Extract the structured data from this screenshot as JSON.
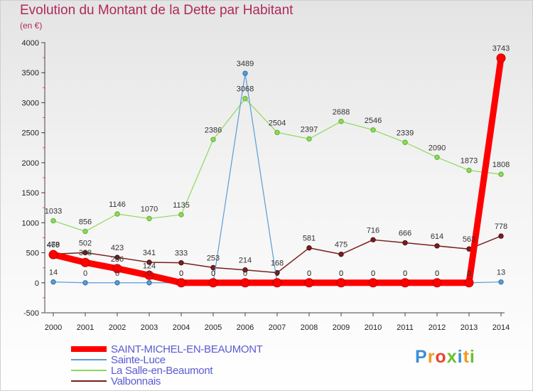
{
  "header": {
    "title": "Evolution du Montant de la Dette par Habitant",
    "unit": "(en €)"
  },
  "logo": {
    "text": "Proxiti"
  },
  "chart_data": {
    "type": "line",
    "title": "Evolution du Montant de la Dette par Habitant",
    "subtitle": "(en €)",
    "x": [
      2000,
      2001,
      2002,
      2003,
      2004,
      2005,
      2006,
      2007,
      2008,
      2009,
      2010,
      2011,
      2012,
      2013,
      2014
    ],
    "ylim": [
      -500,
      4000
    ],
    "yticks": [
      -500,
      0,
      500,
      1000,
      1500,
      2000,
      2500,
      3000,
      3500,
      4000
    ],
    "grid": false,
    "legend_position": "bottom-left",
    "series": [
      {
        "name": "SAINT-MICHEL-EN-BEAUMONT",
        "color": "#ff0000",
        "values": [
          469,
          338,
          236,
          124,
          0,
          0,
          0,
          0,
          0,
          0,
          0,
          0,
          0,
          0,
          3743
        ],
        "labels": [
          "469",
          "338",
          "236",
          "124",
          "0",
          "0",
          "0",
          "0",
          "0",
          "0",
          "0",
          "0",
          "0",
          "0",
          "3743"
        ]
      },
      {
        "name": "Sainte-Luce",
        "color": "#5b9bd5",
        "values": [
          14,
          0,
          0,
          0,
          0,
          0,
          3489,
          0,
          0,
          0,
          0,
          0,
          0,
          0,
          13
        ],
        "labels": [
          "14",
          "0",
          "0",
          "0",
          "0",
          "0",
          "3489",
          "0",
          "0",
          "0",
          "0",
          "0",
          "0",
          "0",
          "13"
        ]
      },
      {
        "name": "La Salle-en-Beaumont",
        "color": "#8ed95b",
        "values": [
          1033,
          856,
          1146,
          1070,
          1135,
          2386,
          3068,
          2504,
          2397,
          2688,
          2546,
          2339,
          2090,
          1873,
          1808
        ],
        "labels": [
          "1033",
          "856",
          "1146",
          "1070",
          "1135",
          "2386",
          "3068",
          "2504",
          "2397",
          "2688",
          "2546",
          "2339",
          "2090",
          "1873",
          "1808"
        ]
      },
      {
        "name": "Valbonnais",
        "color": "#7b1e1e",
        "values": [
          478,
          502,
          423,
          341,
          333,
          253,
          214,
          168,
          581,
          475,
          716,
          666,
          614,
          563,
          778
        ],
        "labels": [
          "478",
          "502",
          "423",
          "341",
          "333",
          "253",
          "214",
          "168",
          "581",
          "475",
          "716",
          "666",
          "614",
          "563",
          "778"
        ]
      }
    ]
  }
}
